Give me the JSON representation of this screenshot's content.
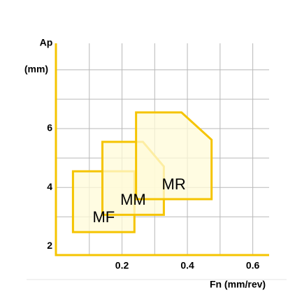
{
  "chart_data": {
    "type": "polygon",
    "x_label": "Fn (mm/rev)",
    "y_label": "Ap",
    "y_unit": "(mm)",
    "xlim": [
      0,
      0.65
    ],
    "ylim": [
      1.7,
      8.9
    ],
    "xticks": [
      0.2,
      0.4,
      0.6
    ],
    "yticks": [
      2,
      4,
      6
    ],
    "xgrid": [
      0.1,
      0.2,
      0.3,
      0.4,
      0.5,
      0.6
    ],
    "ygrid": [
      3,
      4,
      5,
      6,
      7,
      8
    ],
    "grid": true,
    "axis_color": "#f5c400",
    "grid_color": "#b8b8b8",
    "series": [
      {
        "name": "MF",
        "color": "#f5c400",
        "fill": "#fffbd8",
        "x": [
          0.05,
          0.238,
          0.238,
          0.05
        ],
        "values": [
          4.55,
          4.55,
          2.48,
          2.48
        ]
      },
      {
        "name": "MM",
        "color": "#f5c400",
        "fill": "#fffbd8",
        "x": [
          0.14,
          0.264,
          0.328,
          0.328,
          0.14
        ],
        "values": [
          5.55,
          5.55,
          4.71,
          3.07,
          3.07
        ]
      },
      {
        "name": "MR",
        "color": "#f5c400",
        "fill": "#fffbd8",
        "x": [
          0.243,
          0.382,
          0.474,
          0.474,
          0.243
        ],
        "values": [
          6.55,
          6.55,
          5.62,
          3.6,
          3.6
        ]
      }
    ]
  }
}
